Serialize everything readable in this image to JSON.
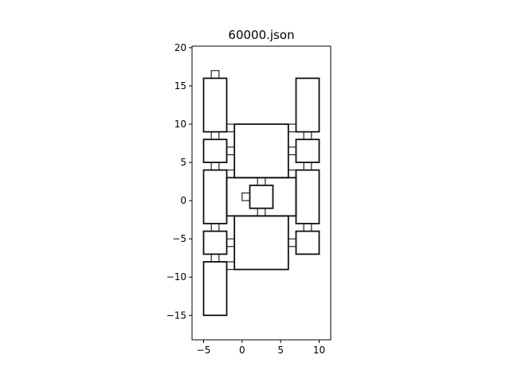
{
  "chart_data": {
    "type": "floorplan",
    "title": "60000.json",
    "xlim": [
      -6.5,
      11.5
    ],
    "ylim": [
      -18.2,
      20.2
    ],
    "xticks": [
      -5,
      0,
      5,
      10
    ],
    "yticks": [
      -15,
      -10,
      -5,
      0,
      5,
      10,
      15,
      20
    ],
    "grid": false,
    "rooms": [
      {
        "x": [
          -5,
          -2
        ],
        "y": [
          9,
          16
        ]
      },
      {
        "x": [
          -5,
          -2
        ],
        "y": [
          5,
          8
        ]
      },
      {
        "x": [
          -5,
          -2
        ],
        "y": [
          -3,
          4
        ]
      },
      {
        "x": [
          -5,
          -2
        ],
        "y": [
          -7,
          -4
        ]
      },
      {
        "x": [
          -5,
          -2
        ],
        "y": [
          -15,
          -8
        ]
      },
      {
        "x": [
          7,
          10
        ],
        "y": [
          9,
          16
        ]
      },
      {
        "x": [
          7,
          10
        ],
        "y": [
          5,
          8
        ]
      },
      {
        "x": [
          7,
          10
        ],
        "y": [
          -3,
          4
        ]
      },
      {
        "x": [
          7,
          10
        ],
        "y": [
          -7,
          -4
        ]
      },
      {
        "x": [
          -1,
          6
        ],
        "y": [
          3,
          10
        ]
      },
      {
        "x": [
          -1,
          6
        ],
        "y": [
          -9,
          -2
        ]
      },
      {
        "x": [
          -2,
          7
        ],
        "y": [
          -2,
          3
        ]
      },
      {
        "x": [
          1,
          4
        ],
        "y": [
          -1,
          2
        ]
      }
    ],
    "doors": [
      {
        "x": [
          -4,
          -3
        ],
        "y": [
          16,
          17
        ]
      },
      {
        "x": [
          -4,
          -3
        ],
        "y": [
          8,
          9
        ]
      },
      {
        "x": [
          -4,
          -3
        ],
        "y": [
          4,
          5
        ]
      },
      {
        "x": [
          -4,
          -3
        ],
        "y": [
          -4,
          -3
        ]
      },
      {
        "x": [
          -4,
          -3
        ],
        "y": [
          -8,
          -7
        ]
      },
      {
        "x": [
          8,
          9
        ],
        "y": [
          8,
          9
        ]
      },
      {
        "x": [
          8,
          9
        ],
        "y": [
          4,
          5
        ]
      },
      {
        "x": [
          8,
          9
        ],
        "y": [
          -4,
          -3
        ]
      },
      {
        "x": [
          -2,
          -1
        ],
        "y": [
          9,
          10
        ]
      },
      {
        "x": [
          -2,
          -1
        ],
        "y": [
          6,
          7
        ]
      },
      {
        "x": [
          -2,
          -1
        ],
        "y": [
          3,
          4
        ]
      },
      {
        "x": [
          -2,
          -1
        ],
        "y": [
          -6,
          -5
        ]
      },
      {
        "x": [
          -2,
          -1
        ],
        "y": [
          -9,
          -8
        ]
      },
      {
        "x": [
          6,
          7
        ],
        "y": [
          9,
          10
        ]
      },
      {
        "x": [
          6,
          7
        ],
        "y": [
          6,
          7
        ]
      },
      {
        "x": [
          6,
          7
        ],
        "y": [
          3,
          4
        ]
      },
      {
        "x": [
          6,
          7
        ],
        "y": [
          -6,
          -5
        ]
      },
      {
        "x": [
          2,
          3
        ],
        "y": [
          2,
          3
        ]
      },
      {
        "x": [
          2,
          3
        ],
        "y": [
          -2,
          -1
        ]
      },
      {
        "x": [
          0,
          1
        ],
        "y": [
          0,
          1
        ]
      }
    ]
  }
}
